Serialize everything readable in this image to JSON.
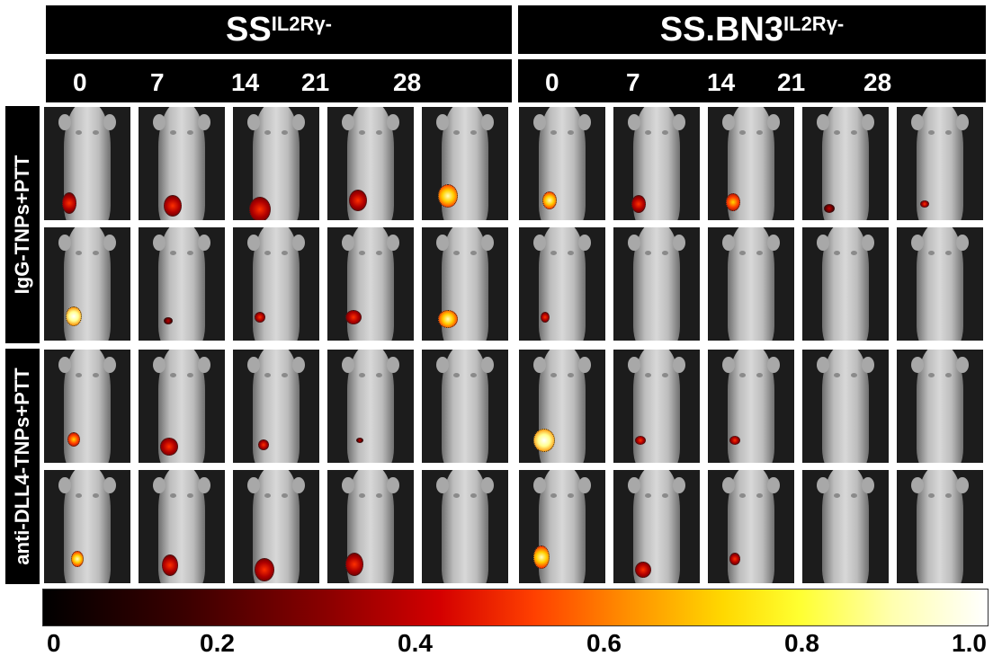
{
  "groups": [
    {
      "title": "SS",
      "superscript": "IL2Rγ-"
    },
    {
      "title": "SS.BN3",
      "superscript": "IL2Rγ-"
    }
  ],
  "days": [
    "0",
    "7",
    "14",
    "21",
    "28"
  ],
  "treatments": [
    "IgG-TNPs+PTT",
    "anti-DLL4-TNPs+PTT"
  ],
  "colorbar": {
    "ticks": [
      "0",
      "0.2",
      "0.4",
      "0.6",
      "0.8",
      "1.0"
    ],
    "colors": [
      "#000000",
      "#8a0000",
      "#ff4000",
      "#ffd800",
      "#ffffff"
    ]
  }
}
